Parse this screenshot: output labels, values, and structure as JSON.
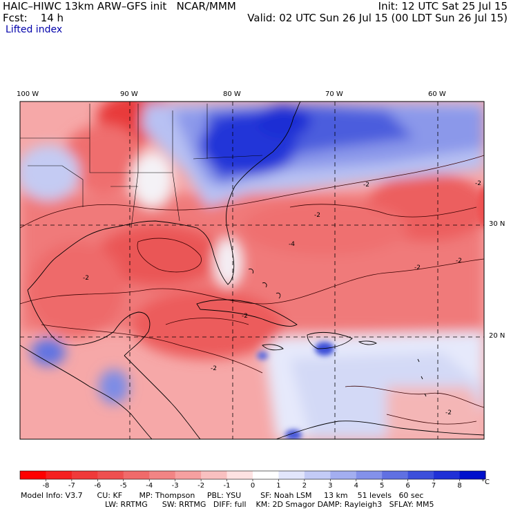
{
  "header": {
    "line1_left": "HAIC–HIWC 13km ARW–GFS init   NCAR/MMM",
    "line1_right": "Init: 12 UTC Sat 25 Jul 15",
    "line2_left": "Fcst:    14 h",
    "line2_right": "Valid: 02 UTC Sun 26 Jul 15 (00 LDT Sun 26 Jul 15)",
    "field_label": "Lifted index"
  },
  "map": {
    "lon_labels": [
      "100 W",
      "90 W",
      "80 W",
      "70 W",
      "60 W"
    ],
    "lat_labels": [
      "30 N",
      "20 N"
    ],
    "contour_labels": [
      "-2",
      "-2",
      "-2",
      "-2",
      "-2",
      "-2",
      "-2",
      "-2",
      "-4",
      "-2"
    ],
    "colors": {
      "positive_strong": "#1a2fe0",
      "negative_strong": "#ee2222",
      "neutral": "#ffffff",
      "borders": "#000000"
    }
  },
  "colorbar": {
    "labels": [
      "-8",
      "-7",
      "-6",
      "-5",
      "-4",
      "-3",
      "-2",
      "-1",
      "0",
      "1",
      "2",
      "3",
      "4",
      "5",
      "6",
      "7",
      "8"
    ],
    "unit": "°C",
    "colors": [
      "#ff0000",
      "#f52020",
      "#f03a3a",
      "#ee5050",
      "#f06a6a",
      "#f28484",
      "#f6a0a0",
      "#f9c0c0",
      "#fde2e2",
      "#ffffff",
      "#e2e6fb",
      "#c3cbf6",
      "#a3aef0",
      "#8391ea",
      "#6070e2",
      "#3c4fdb",
      "#1f30d6",
      "#0010cc"
    ]
  },
  "model_info": {
    "line1": "Model Info: V3.7      CU: KF       MP: Thompson     PBL: YSU        SF: Noah LSM     13 km    51 levels   60 sec",
    "line2": "LW: RRTMG      SW: RRTMG   DIFF: full    KM: 2D Smagor DAMP: Rayleigh3   SFLAY: MM5"
  }
}
